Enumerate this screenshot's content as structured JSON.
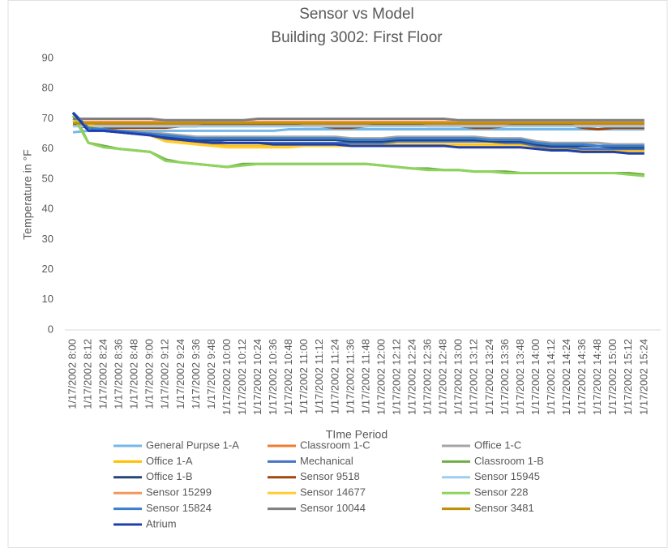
{
  "chart_data": {
    "type": "line",
    "title": "Sensor vs Model",
    "subtitle": "Building 3002: First Floor",
    "y_label": "Temperature in °F",
    "x_label": "TIme Period",
    "ylim": [
      0,
      90
    ],
    "yticks": [
      0,
      10,
      20,
      30,
      40,
      50,
      60,
      70,
      80,
      90
    ],
    "grid": false,
    "categories": [
      "1/17/2002 8:00",
      "1/17/2002 8:12",
      "1/17/2002 8:24",
      "1/17/2002 8:36",
      "1/17/2002 8:48",
      "1/17/2002 9:00",
      "1/17/2002 9:12",
      "1/17/2002 9:24",
      "1/17/2002 9:36",
      "1/17/2002 9:48",
      "1/17/2002 10:00",
      "1/17/2002 10:12",
      "1/17/2002 10:24",
      "1/17/2002 10:36",
      "1/17/2002 10:48",
      "1/17/2002 11:00",
      "1/17/2002 11:12",
      "1/17/2002 11:24",
      "1/17/2002 11:36",
      "1/17/2002 11:48",
      "1/17/2002 12:00",
      "1/17/2002 12:12",
      "1/17/2002 12:24",
      "1/17/2002 12:36",
      "1/17/2002 12:48",
      "1/17/2002 13:00",
      "1/17/2002 13:12",
      "1/17/2002 13:24",
      "1/17/2002 13:36",
      "1/17/2002 13:48",
      "1/17/2002 14:00",
      "1/17/2002 14:12",
      "1/17/2002 14:24",
      "1/17/2002 14:36",
      "1/17/2002 14:48",
      "1/17/2002 15:00",
      "1/17/2002 15:12",
      "1/17/2002 15:24"
    ],
    "series": [
      {
        "name": "General Purpse 1-A",
        "color": "#75b7e6",
        "values": [
          65.5,
          66,
          66,
          66,
          66,
          66,
          66,
          66,
          66,
          66,
          66,
          66,
          66,
          66,
          66.5,
          66.5,
          66.5,
          66.5,
          66.5,
          66.5,
          66.5,
          66.5,
          66.5,
          66.5,
          66.5,
          66.5,
          66.5,
          66.5,
          66.5,
          66.5,
          66.5,
          66.5,
          66.5,
          66.5,
          66.5,
          66.5,
          66.5,
          66.5
        ]
      },
      {
        "name": "Classroom 1-C",
        "color": "#ed7d31",
        "values": [
          68,
          68,
          68,
          68,
          68,
          68,
          68,
          68,
          68,
          68,
          68,
          68,
          68,
          68,
          68,
          68,
          68,
          68,
          68,
          68,
          68,
          68,
          68,
          68,
          68,
          68,
          68,
          68,
          68,
          68,
          68,
          68,
          68,
          68,
          68,
          68,
          68,
          68
        ]
      },
      {
        "name": "Office 1-C",
        "color": "#a5a5a5",
        "values": [
          70,
          67,
          66.5,
          66,
          66,
          65.5,
          65,
          64.5,
          64,
          64,
          64,
          64,
          64,
          64,
          64,
          64,
          64,
          64,
          63.5,
          63.5,
          63.5,
          64,
          64,
          64,
          64,
          64,
          64,
          63.5,
          63.5,
          63.5,
          62.5,
          62,
          62,
          62,
          62,
          61.5,
          61.5,
          61.5
        ]
      },
      {
        "name": "Office 1-A",
        "color": "#ffc000",
        "values": [
          70,
          68,
          67,
          66,
          65.5,
          65,
          63,
          62.5,
          62,
          61.5,
          61,
          61,
          61,
          61,
          61,
          61.5,
          61.5,
          61.5,
          61.5,
          61.5,
          61.5,
          61.5,
          61.5,
          61.5,
          61.5,
          61.5,
          61.5,
          61.5,
          61.5,
          61.5,
          60.5,
          60,
          60,
          59.5,
          59.5,
          59.5,
          59.5,
          59.5
        ]
      },
      {
        "name": "Mechanical",
        "color": "#4472c4",
        "values": [
          72,
          67,
          66,
          65.5,
          65,
          64.5,
          63.5,
          63,
          62.5,
          62.5,
          62,
          62,
          62,
          62,
          62,
          62,
          62,
          62,
          62,
          62,
          62,
          62.5,
          62.5,
          62.5,
          62.5,
          62.5,
          62.5,
          62.5,
          62,
          62,
          61,
          60.5,
          60.5,
          60,
          60,
          60,
          60,
          60
        ]
      },
      {
        "name": "Classroom 1-B",
        "color": "#70ad47",
        "values": [
          72,
          62,
          61,
          60,
          59.5,
          59,
          56.5,
          55.5,
          55,
          54.5,
          54,
          55,
          55,
          55,
          55,
          55,
          55,
          55,
          55,
          55,
          54.5,
          54,
          53.5,
          53.5,
          53,
          53,
          52.5,
          52.5,
          52.5,
          52,
          52,
          52,
          52,
          52,
          52,
          52,
          52,
          51.5
        ]
      },
      {
        "name": "Office 1-B",
        "color": "#264478",
        "values": [
          72,
          67,
          66,
          65.5,
          65,
          65,
          64,
          63.5,
          63,
          63,
          63,
          63,
          63,
          63,
          63,
          63,
          63,
          63,
          62.5,
          62.5,
          62.5,
          63,
          63,
          63,
          63,
          63,
          63,
          62.5,
          62.5,
          62.5,
          61.5,
          61,
          61,
          61,
          61,
          60.5,
          60.5,
          60.5
        ]
      },
      {
        "name": "Sensor 9518",
        "color": "#9e480e",
        "values": [
          68,
          67,
          67,
          67,
          67,
          67,
          67,
          67.5,
          67.5,
          68,
          68,
          68,
          68,
          68,
          68,
          67.5,
          67.5,
          67,
          67,
          67.5,
          68,
          68,
          68,
          67.5,
          67.5,
          67.5,
          67,
          67,
          67.5,
          68,
          68,
          68,
          68,
          67,
          66.5,
          67,
          67,
          67
        ]
      },
      {
        "name": "Sensor 15945",
        "color": "#9dcdf0",
        "values": [
          67.5,
          67.5,
          67.5,
          67.5,
          67.5,
          67.5,
          67.5,
          67.5,
          67.5,
          67.5,
          67.5,
          67.5,
          67.5,
          67.5,
          67.5,
          67.5,
          67.5,
          67.5,
          67.5,
          67.5,
          67.5,
          67.5,
          67.5,
          67.5,
          67.5,
          67.5,
          67.5,
          67.5,
          67.5,
          67.5,
          67.5,
          67.5,
          67.5,
          67.5,
          67.5,
          67.5,
          67.5,
          67.5
        ]
      },
      {
        "name": "Sensor 15299",
        "color": "#f1975a",
        "values": [
          69,
          69,
          69,
          69,
          69,
          69,
          69,
          69,
          69,
          69,
          69,
          69,
          69,
          69,
          69,
          69,
          69,
          69,
          69,
          69,
          69,
          69,
          69,
          69,
          69,
          69,
          69,
          69,
          69,
          69,
          69,
          69,
          69,
          69,
          69,
          69,
          69,
          69
        ]
      },
      {
        "name": "Sensor 14677",
        "color": "#ffcd33",
        "values": [
          69.5,
          67.5,
          66.5,
          65.5,
          65,
          64.5,
          62.5,
          62,
          61.5,
          61,
          60.5,
          60.5,
          60.5,
          60.5,
          60.5,
          61,
          61,
          61,
          61,
          61,
          61,
          61,
          61,
          61,
          61,
          61,
          61,
          61,
          61,
          61,
          60,
          59.5,
          59.5,
          59,
          59,
          59,
          59,
          59
        ]
      },
      {
        "name": "Sensor 228",
        "color": "#8fd35f",
        "values": [
          71,
          62,
          60.5,
          60,
          59.5,
          59,
          56,
          55.5,
          55,
          54.5,
          54,
          54.5,
          55,
          55,
          55,
          55,
          55,
          55,
          55,
          55,
          54.5,
          54,
          53.5,
          53,
          53,
          53,
          52.5,
          52.5,
          52,
          52,
          52,
          52,
          52,
          52,
          52,
          52,
          51.5,
          51
        ]
      },
      {
        "name": "Sensor 15824",
        "color": "#3a7fd0",
        "values": [
          72,
          67,
          66.5,
          66,
          65.5,
          65,
          64.5,
          64,
          63.5,
          63.5,
          63.5,
          63.5,
          63.5,
          63.5,
          63.5,
          63.5,
          63.5,
          63.5,
          63,
          63,
          63,
          63.5,
          63.5,
          63.5,
          63.5,
          63.5,
          63.5,
          63,
          63,
          63,
          62,
          61.5,
          61.5,
          61.5,
          61,
          61,
          61,
          61
        ]
      },
      {
        "name": "Sensor 10044",
        "color": "#7f7f7f",
        "values": [
          70,
          70,
          70,
          70,
          70,
          70,
          69.5,
          69.5,
          69.5,
          69.5,
          69.5,
          69.5,
          70,
          70,
          70,
          70,
          70,
          70,
          70,
          70,
          70,
          70,
          70,
          70,
          70,
          69.5,
          69.5,
          69.5,
          69.5,
          69.5,
          69.5,
          69.5,
          69.5,
          69.5,
          69.5,
          69.5,
          69.5,
          69.5
        ]
      },
      {
        "name": "Sensor 3481",
        "color": "#bf8f00",
        "values": [
          68.5,
          68.5,
          68.5,
          68.5,
          68.5,
          68.5,
          68.5,
          68.5,
          68.5,
          68.5,
          68.5,
          68.5,
          68.5,
          68.5,
          68.5,
          68.5,
          68.5,
          68.5,
          68.5,
          68.5,
          68.5,
          68.5,
          68.5,
          68.5,
          68.5,
          68.5,
          68.5,
          68.5,
          68.5,
          68.5,
          68.5,
          68.5,
          68.5,
          68.5,
          68.5,
          68.5,
          68.5,
          68.5
        ]
      },
      {
        "name": "Atrium",
        "color": "#1f3fae",
        "values": [
          72,
          66,
          66,
          65.5,
          65,
          64.5,
          63.5,
          63,
          62.5,
          62,
          62,
          62,
          62,
          61.5,
          61.5,
          61.5,
          61.5,
          61.5,
          61,
          61,
          61,
          61,
          61,
          61,
          61,
          60.5,
          60.5,
          60.5,
          60.5,
          60.5,
          60,
          59.5,
          59.5,
          59,
          59,
          59,
          58.5,
          58.5
        ]
      }
    ]
  }
}
